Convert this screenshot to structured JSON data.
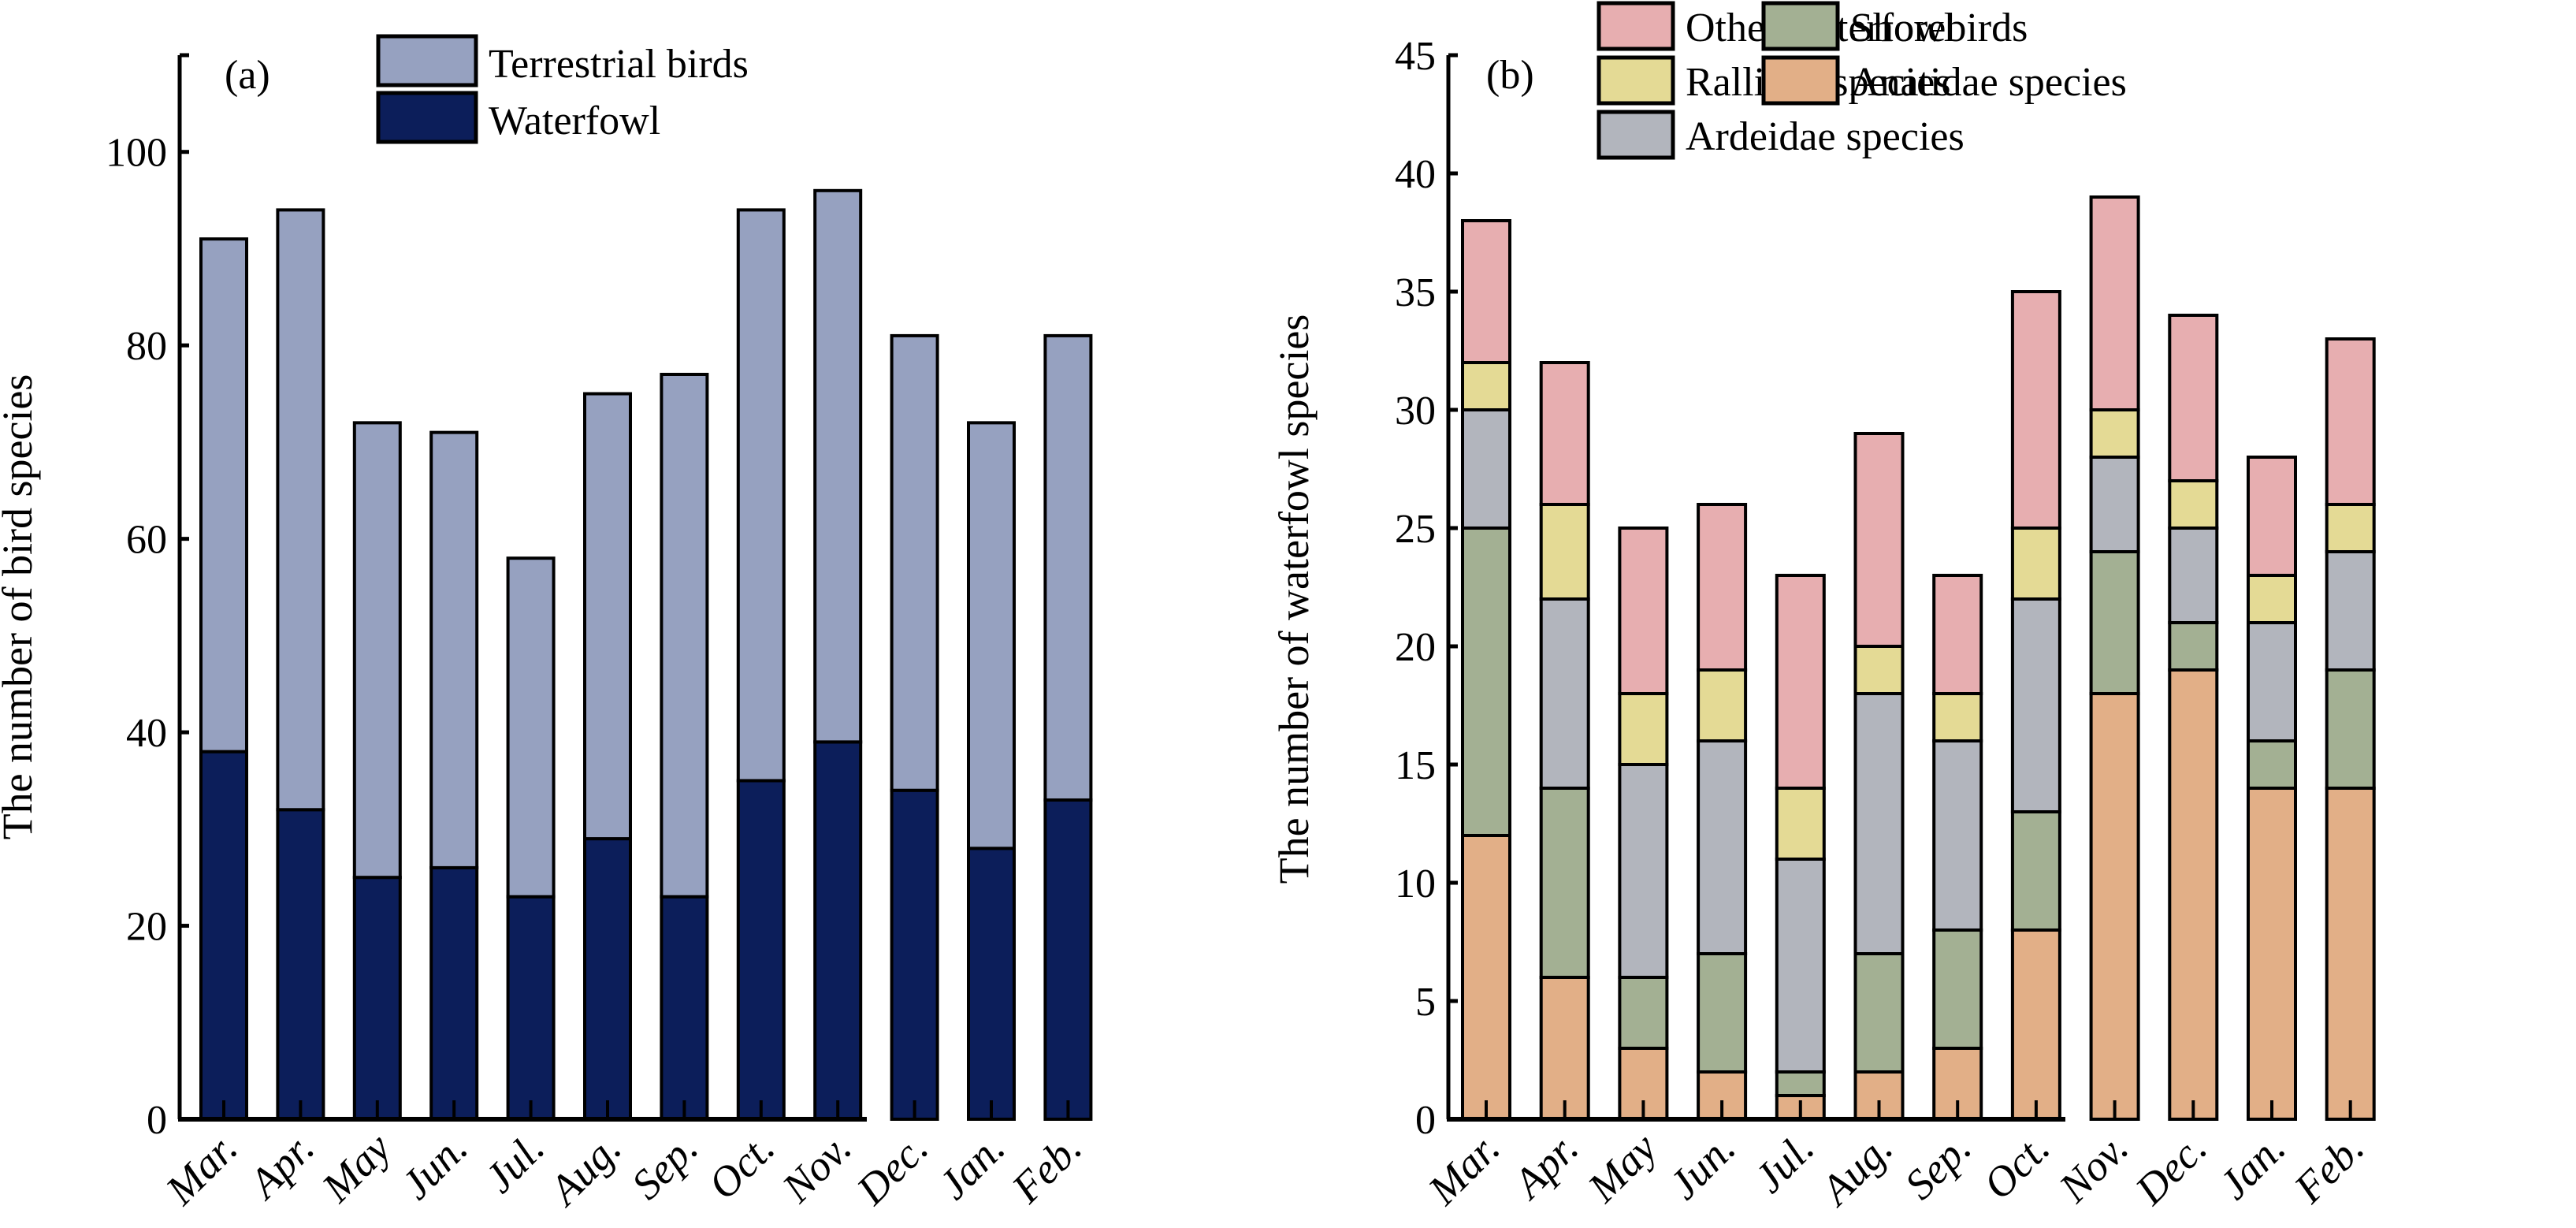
{
  "chart_data": [
    {
      "type": "bar",
      "stacked": true,
      "panel_label": "(a)",
      "title": "",
      "xlabel": "",
      "ylabel": "The number of bird species",
      "ylim": [
        0,
        110
      ],
      "yticks": [
        0,
        20,
        40,
        60,
        80,
        100
      ],
      "grid": false,
      "legend_position": "top-center",
      "categories": [
        "Mar.",
        "Apr.",
        "May",
        "Jun.",
        "Jul.",
        "Aug.",
        "Sep.",
        "Oct.",
        "Nov.",
        "Dec.",
        "Jan.",
        "Feb."
      ],
      "series": [
        {
          "name": "Waterfowl",
          "color": "#0c1e5a",
          "values": [
            38,
            32,
            25,
            26,
            23,
            29,
            23,
            35,
            39,
            34,
            28,
            33
          ]
        },
        {
          "name": "Terrestrial birds",
          "color": "#96a1c0",
          "values": [
            53,
            62,
            47,
            45,
            35,
            46,
            54,
            59,
            57,
            47,
            44,
            48
          ]
        }
      ],
      "legend": [
        "Terrestrial birds",
        "Waterfowl"
      ],
      "totals": [
        91,
        94,
        72,
        71,
        58,
        75,
        77,
        94,
        96,
        81,
        72,
        81
      ]
    },
    {
      "type": "bar",
      "stacked": true,
      "panel_label": "(b)",
      "title": "",
      "xlabel": "",
      "ylabel": "The number of waterfowl species",
      "ylim": [
        0,
        45
      ],
      "yticks": [
        0,
        5,
        10,
        15,
        20,
        25,
        30,
        35,
        40,
        45
      ],
      "grid": false,
      "legend_position": "top",
      "categories": [
        "Mar.",
        "Apr.",
        "May",
        "Jun.",
        "Jul.",
        "Aug.",
        "Sep.",
        "Oct.",
        "Nov.",
        "Dec.",
        "Jan.",
        "Feb."
      ],
      "series": [
        {
          "name": "Anatidae species",
          "color": "#e2af87",
          "values": [
            12,
            6,
            3,
            2,
            1,
            2,
            3,
            8,
            18,
            19,
            14,
            14
          ]
        },
        {
          "name": "Shorebirds",
          "color": "#a3b093",
          "values": [
            13,
            8,
            3,
            5,
            1,
            5,
            5,
            5,
            6,
            2,
            2,
            5
          ]
        },
        {
          "name": "Ardeidae  species",
          "color": "#b2b5bd",
          "values": [
            5,
            8,
            9,
            9,
            9,
            11,
            8,
            9,
            4,
            4,
            5,
            5
          ]
        },
        {
          "name": "Rallidae species",
          "color": "#e4da95",
          "values": [
            2,
            4,
            3,
            3,
            3,
            2,
            2,
            3,
            2,
            2,
            2,
            2
          ]
        },
        {
          "name": "Other waterfowl",
          "color": "#e7aeb0",
          "values": [
            6,
            6,
            7,
            7,
            9,
            9,
            5,
            10,
            9,
            7,
            5,
            7
          ]
        }
      ],
      "legend": [
        "Other waterfowl",
        "Rallidae species",
        "Ardeidae  species",
        "Shorebirds",
        "Anatidae species"
      ],
      "totals": [
        38,
        32,
        25,
        26,
        23,
        29,
        23,
        35,
        39,
        34,
        28,
        33
      ]
    }
  ]
}
